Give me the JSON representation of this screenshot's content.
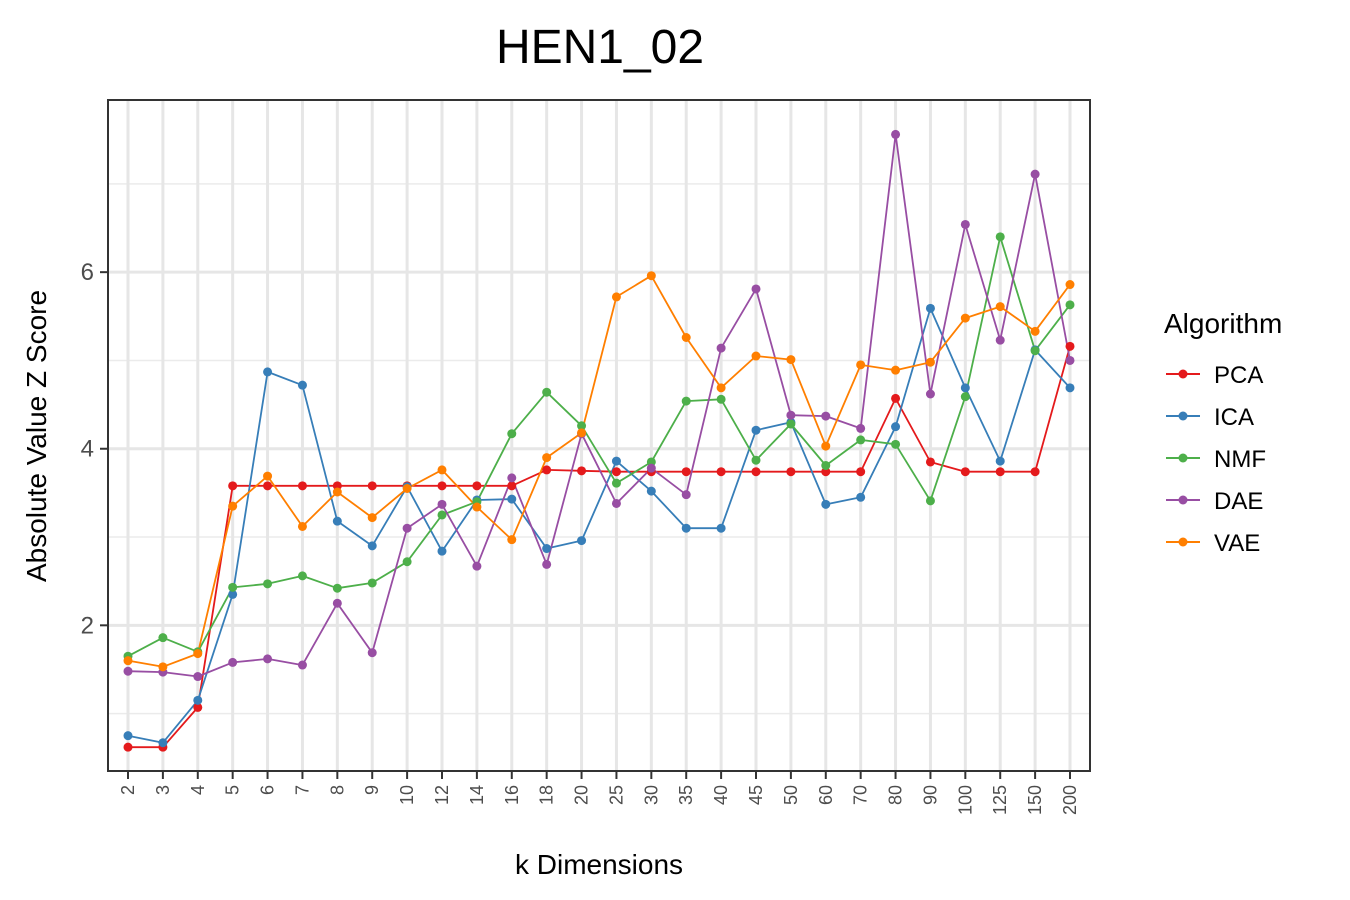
{
  "chart_data": {
    "type": "line",
    "title": "HEN1_02",
    "xlabel": "k Dimensions",
    "ylabel": "Absolute Value Z Score",
    "categories": [
      "2",
      "3",
      "4",
      "5",
      "6",
      "7",
      "8",
      "9",
      "10",
      "12",
      "14",
      "16",
      "18",
      "20",
      "25",
      "30",
      "35",
      "40",
      "45",
      "50",
      "60",
      "70",
      "80",
      "90",
      "100",
      "125",
      "150",
      "200"
    ],
    "ylim": [
      0.35,
      7.95
    ],
    "y_ticks": [
      2,
      4,
      6
    ],
    "y_tick_labels": [
      "2",
      "4",
      "6"
    ],
    "grid": true,
    "legend": {
      "title": "Algorithm",
      "position": "right"
    },
    "series": [
      {
        "name": "PCA",
        "color": "#e41a1c",
        "values": [
          0.62,
          0.62,
          1.07,
          3.58,
          3.58,
          3.58,
          3.58,
          3.58,
          3.58,
          3.58,
          3.58,
          3.58,
          3.76,
          3.75,
          3.74,
          3.74,
          3.74,
          3.74,
          3.74,
          3.74,
          3.74,
          3.74,
          4.57,
          3.85,
          3.74,
          3.74,
          3.74,
          5.16
        ]
      },
      {
        "name": "ICA",
        "color": "#377eb8",
        "values": [
          0.75,
          0.67,
          1.15,
          2.35,
          4.87,
          4.72,
          3.18,
          2.9,
          3.57,
          2.84,
          3.42,
          3.43,
          2.87,
          2.96,
          3.86,
          3.52,
          3.1,
          3.1,
          4.21,
          4.3,
          3.37,
          3.45,
          4.25,
          5.59,
          4.69,
          3.86,
          5.12,
          4.69
        ]
      },
      {
        "name": "NMF",
        "color": "#4daf4a",
        "values": [
          1.65,
          1.86,
          1.7,
          2.43,
          2.47,
          2.56,
          2.42,
          2.48,
          2.72,
          3.25,
          3.4,
          4.17,
          4.64,
          4.26,
          3.61,
          3.85,
          4.54,
          4.56,
          3.87,
          4.28,
          3.81,
          4.1,
          4.05,
          3.41,
          4.59,
          6.4,
          5.11,
          5.63
        ]
      },
      {
        "name": "DAE",
        "color": "#984ea3",
        "values": [
          1.48,
          1.47,
          1.42,
          1.58,
          1.62,
          1.55,
          2.25,
          1.69,
          3.1,
          3.37,
          2.67,
          3.67,
          2.69,
          4.17,
          3.38,
          3.78,
          3.48,
          5.14,
          5.81,
          4.38,
          4.37,
          4.23,
          7.56,
          4.62,
          6.54,
          5.23,
          7.11,
          5.0
        ]
      },
      {
        "name": "VAE",
        "color": "#ff7f00",
        "values": [
          1.6,
          1.53,
          1.68,
          3.35,
          3.69,
          3.12,
          3.51,
          3.22,
          3.55,
          3.76,
          3.34,
          2.97,
          3.9,
          4.18,
          5.72,
          5.96,
          5.26,
          4.69,
          5.05,
          5.01,
          4.03,
          4.95,
          4.89,
          4.98,
          5.48,
          5.61,
          5.33,
          5.86
        ]
      }
    ]
  }
}
